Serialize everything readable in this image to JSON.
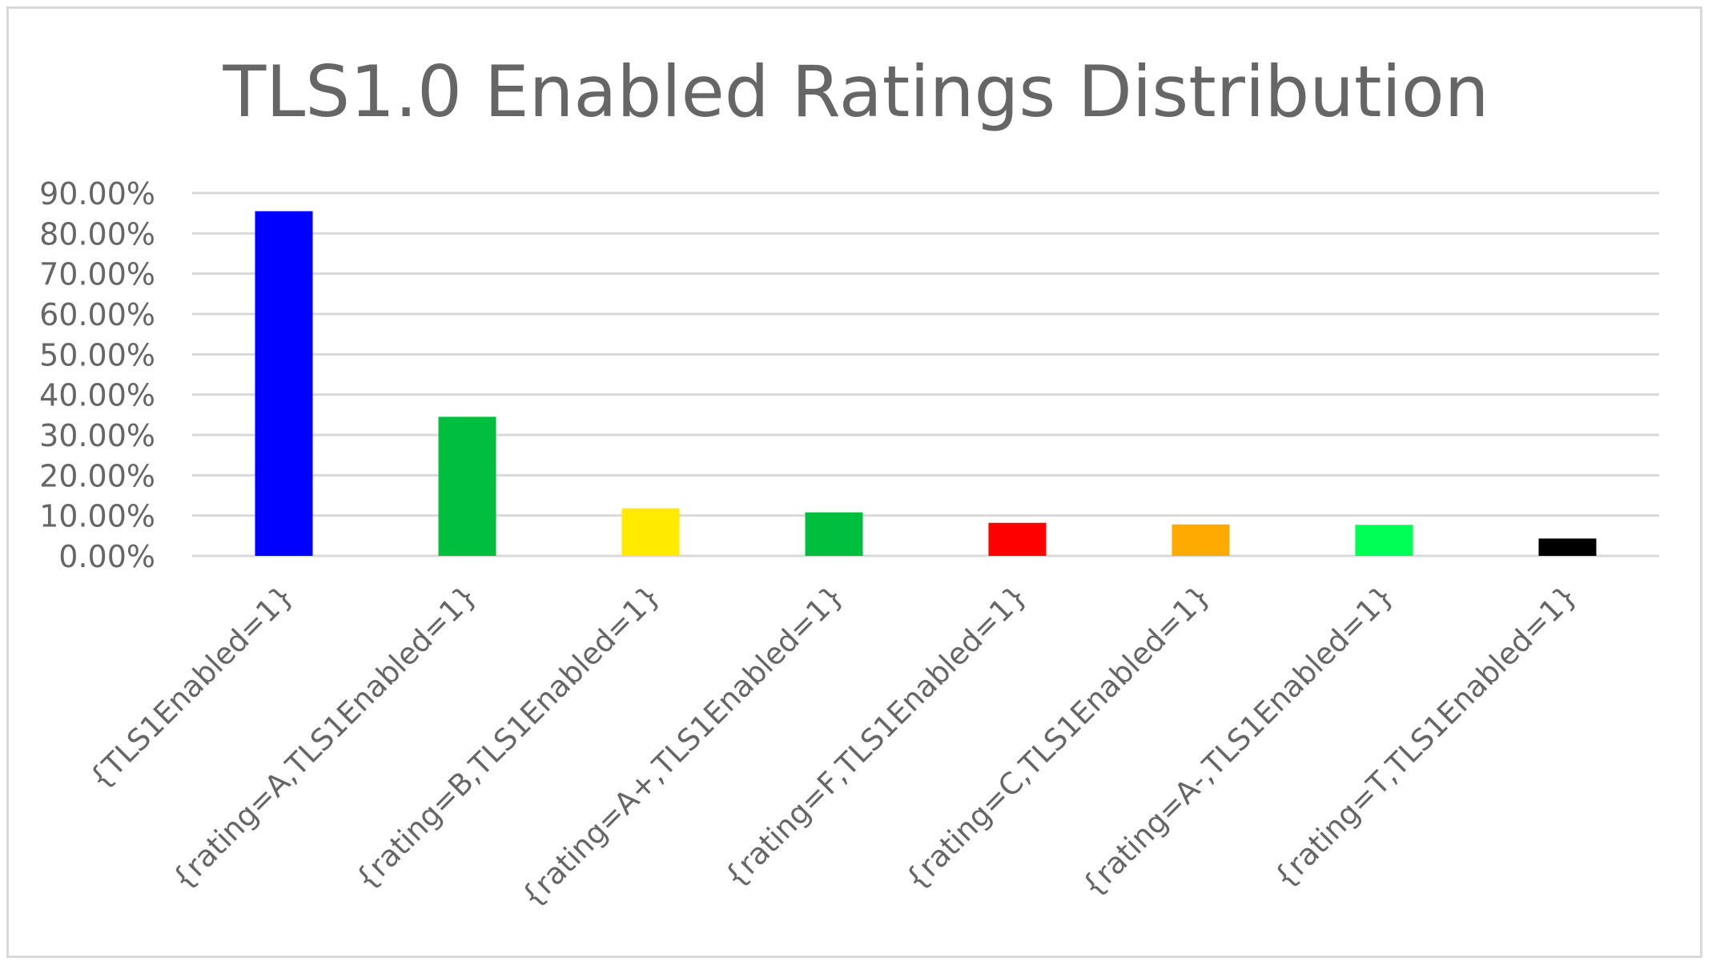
{
  "chart_data": {
    "type": "bar",
    "title": "TLS1.0 Enabled Ratings Distribution",
    "xlabel": "",
    "ylabel": "",
    "categories": [
      "{TLS1Enabled=1}",
      "{rating=A,TLS1Enabled=1}",
      "{rating=B,TLS1Enabled=1}",
      "{rating=A+,TLS1Enabled=1}",
      "{rating=F,TLS1Enabled=1}",
      "{rating=C,TLS1Enabled=1}",
      "{rating=A-,TLS1Enabled=1}",
      "{rating=T,TLS1Enabled=1}"
    ],
    "values": [
      85.5,
      34.5,
      11.8,
      10.8,
      8.2,
      7.8,
      7.7,
      4.3
    ],
    "colors": [
      "#0000ff",
      "#00bf3f",
      "#ffea00",
      "#00bf3f",
      "#ff0000",
      "#ffaa00",
      "#00ff55",
      "#000000"
    ],
    "ylim": [
      0,
      90
    ],
    "yticks": [
      0,
      10,
      20,
      30,
      40,
      50,
      60,
      70,
      80,
      90
    ],
    "ytick_labels": [
      "0.00%",
      "10.00%",
      "20.00%",
      "30.00%",
      "40.00%",
      "50.00%",
      "60.00%",
      "70.00%",
      "80.00%",
      "90.00%"
    ],
    "grid": true,
    "legend": "none"
  }
}
